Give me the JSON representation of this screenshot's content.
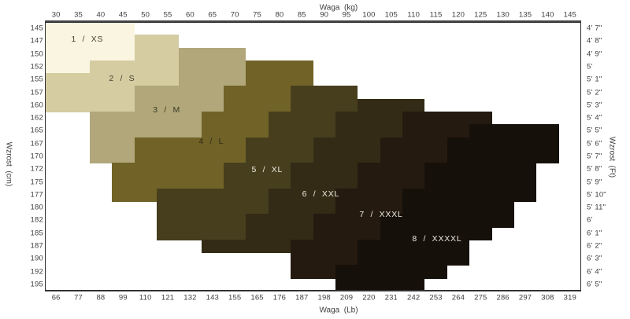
{
  "chart_data": {
    "type": "heatmap",
    "title": "",
    "x_top": {
      "label": "Waga  (kg)",
      "ticks": [
        30,
        35,
        40,
        45,
        50,
        55,
        60,
        65,
        70,
        75,
        80,
        85,
        90,
        95,
        100,
        105,
        110,
        115,
        120,
        125,
        130,
        135,
        140,
        145
      ]
    },
    "x_bottom": {
      "label": "Waga  (Lb)",
      "ticks": [
        66,
        77,
        88,
        99,
        110,
        121,
        132,
        143,
        155,
        165,
        176,
        187,
        198,
        209,
        220,
        231,
        242,
        253,
        264,
        275,
        286,
        297,
        308,
        319
      ]
    },
    "y_left": {
      "label": "Wzrost  (cm)",
      "ticks": [
        145,
        147,
        150,
        152,
        155,
        157,
        160,
        162,
        165,
        167,
        170,
        172,
        175,
        177,
        180,
        182,
        185,
        187,
        190,
        192,
        195
      ]
    },
    "y_right": {
      "label": "Wzrost  (Ft)",
      "ticks": [
        "4' 7\"",
        "4' 8\"",
        "4' 9\"",
        "5'",
        "5' 1\"",
        "5' 2\"",
        "5' 3\"",
        "5' 4\"",
        "5' 5\"",
        "5' 6\"",
        "5' 7\"",
        "5' 8\"",
        "5' 9\"",
        "5' 10\"",
        "5' 11\"",
        "6'",
        "6' 1\"",
        "6' 2\"",
        "6' 3\"",
        "6' 4\"",
        "6' 5\""
      ]
    },
    "grid": {
      "columns": 24,
      "rows": 21,
      "kg_per_column": 5,
      "cm_per_row": 2.5
    },
    "sizes": [
      {
        "key": "xs",
        "label": "1  /  XS",
        "color": "#f9f5e0",
        "text_color": "#45432f",
        "label_col": 1.9,
        "label_row": 1.35
      },
      {
        "key": "s",
        "label": "2  /  S",
        "color": "#d5cca2",
        "text_color": "#45432f",
        "label_col": 3.45,
        "label_row": 4.45
      },
      {
        "key": "m",
        "label": "3  /  M",
        "color": "#b1a77a",
        "text_color": "#3c3a27",
        "label_col": 5.45,
        "label_row": 6.9
      },
      {
        "key": "l",
        "label": "4  /  L",
        "color": "#716327",
        "text_color": "#2e2a16",
        "label_col": 7.45,
        "label_row": 9.35
      },
      {
        "key": "xl",
        "label": "5  /  XL",
        "color": "#473e1d",
        "text_color": "#eeebe0",
        "label_col": 9.95,
        "label_row": 11.55
      },
      {
        "key": "xxl",
        "label": "6  /  XXL",
        "color": "#332b16",
        "text_color": "#eeebe0",
        "label_col": 12.35,
        "label_row": 13.45
      },
      {
        "key": "xxxl",
        "label": "7  /  XXXL",
        "color": "#241a10",
        "text_color": "#eeebe0",
        "label_col": 15.05,
        "label_row": 15.05
      },
      {
        "key": "xxxxl",
        "label": "8  /  XXXXL",
        "color": "#16100a",
        "text_color": "#eeebe0",
        "label_col": 17.55,
        "label_row": 16.95
      }
    ],
    "rows": [
      {
        "cm": 145,
        "bands": [
          [
            "xs",
            0,
            4
          ]
        ]
      },
      {
        "cm": 147,
        "bands": [
          [
            "xs",
            0,
            4
          ],
          [
            "s",
            4,
            6
          ]
        ]
      },
      {
        "cm": 150,
        "bands": [
          [
            "xs",
            0,
            4
          ],
          [
            "s",
            4,
            6
          ],
          [
            "m",
            6,
            9
          ]
        ]
      },
      {
        "cm": 152,
        "bands": [
          [
            "xs",
            0,
            2
          ],
          [
            "s",
            2,
            6
          ],
          [
            "m",
            6,
            9
          ],
          [
            "l",
            9,
            12
          ]
        ]
      },
      {
        "cm": 155,
        "bands": [
          [
            "s",
            0,
            6
          ],
          [
            "m",
            6,
            9
          ],
          [
            "l",
            9,
            12
          ]
        ]
      },
      {
        "cm": 157,
        "bands": [
          [
            "s",
            0,
            4
          ],
          [
            "m",
            4,
            8
          ],
          [
            "l",
            8,
            11
          ],
          [
            "xl",
            11,
            14
          ]
        ]
      },
      {
        "cm": 160,
        "bands": [
          [
            "s",
            0,
            4
          ],
          [
            "m",
            4,
            8
          ],
          [
            "l",
            8,
            11
          ],
          [
            "xl",
            11,
            14
          ],
          [
            "xxl",
            14,
            17
          ]
        ]
      },
      {
        "cm": 162,
        "bands": [
          [
            "m",
            2,
            7
          ],
          [
            "l",
            7,
            10
          ],
          [
            "xl",
            10,
            13
          ],
          [
            "xxl",
            13,
            16
          ],
          [
            "xxxl",
            16,
            20
          ]
        ]
      },
      {
        "cm": 165,
        "bands": [
          [
            "m",
            2,
            7
          ],
          [
            "l",
            7,
            10
          ],
          [
            "xl",
            10,
            13
          ],
          [
            "xxl",
            13,
            16
          ],
          [
            "xxxl",
            16,
            19
          ],
          [
            "xxxxl",
            19,
            23
          ]
        ]
      },
      {
        "cm": 167,
        "bands": [
          [
            "m",
            2,
            4
          ],
          [
            "l",
            4,
            9
          ],
          [
            "xl",
            9,
            12
          ],
          [
            "xxl",
            12,
            15
          ],
          [
            "xxxl",
            15,
            18
          ],
          [
            "xxxxl",
            18,
            23
          ]
        ]
      },
      {
        "cm": 170,
        "bands": [
          [
            "m",
            2,
            4
          ],
          [
            "l",
            4,
            9
          ],
          [
            "xl",
            9,
            12
          ],
          [
            "xxl",
            12,
            15
          ],
          [
            "xxxl",
            15,
            18
          ],
          [
            "xxxxl",
            18,
            23
          ]
        ]
      },
      {
        "cm": 172,
        "bands": [
          [
            "l",
            3,
            8
          ],
          [
            "xl",
            8,
            11
          ],
          [
            "xxl",
            11,
            14
          ],
          [
            "xxxl",
            14,
            17
          ],
          [
            "xxxxl",
            17,
            22
          ]
        ]
      },
      {
        "cm": 175,
        "bands": [
          [
            "l",
            3,
            8
          ],
          [
            "xl",
            8,
            11
          ],
          [
            "xxl",
            11,
            14
          ],
          [
            "xxxl",
            14,
            17
          ],
          [
            "xxxxl",
            17,
            22
          ]
        ]
      },
      {
        "cm": 177,
        "bands": [
          [
            "l",
            3,
            5
          ],
          [
            "xl",
            5,
            10
          ],
          [
            "xxl",
            10,
            13
          ],
          [
            "xxxl",
            13,
            16
          ],
          [
            "xxxxl",
            16,
            22
          ]
        ]
      },
      {
        "cm": 180,
        "bands": [
          [
            "xl",
            5,
            10
          ],
          [
            "xxl",
            10,
            13
          ],
          [
            "xxxl",
            13,
            16
          ],
          [
            "xxxxl",
            16,
            21
          ]
        ]
      },
      {
        "cm": 182,
        "bands": [
          [
            "xl",
            5,
            9
          ],
          [
            "xxl",
            9,
            12
          ],
          [
            "xxxl",
            12,
            15
          ],
          [
            "xxxxl",
            15,
            21
          ]
        ]
      },
      {
        "cm": 185,
        "bands": [
          [
            "xl",
            5,
            9
          ],
          [
            "xxl",
            9,
            12
          ],
          [
            "xxxl",
            12,
            15
          ],
          [
            "xxxxl",
            15,
            20
          ]
        ]
      },
      {
        "cm": 187,
        "bands": [
          [
            "xxl",
            7,
            11
          ],
          [
            "xxxl",
            11,
            14
          ],
          [
            "xxxxl",
            14,
            19
          ]
        ]
      },
      {
        "cm": 190,
        "bands": [
          [
            "xxxl",
            11,
            14
          ],
          [
            "xxxxl",
            14,
            19
          ]
        ]
      },
      {
        "cm": 192,
        "bands": [
          [
            "xxxl",
            11,
            13
          ],
          [
            "xxxxl",
            13,
            18
          ]
        ]
      },
      {
        "cm": 195,
        "bands": [
          [
            "xxxxl",
            13,
            17
          ]
        ]
      }
    ]
  }
}
